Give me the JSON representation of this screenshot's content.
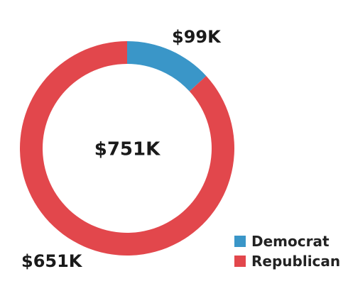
{
  "chart_data": {
    "type": "pie",
    "subtype": "donut",
    "center_label": "$751K",
    "slices": [
      {
        "name": "Democrat",
        "value": 99,
        "label": "$99K",
        "color": "#3a96c8"
      },
      {
        "name": "Republican",
        "value": 651,
        "label": "$651K",
        "color": "#e2474c"
      }
    ],
    "legend_position": "bottom-right"
  }
}
